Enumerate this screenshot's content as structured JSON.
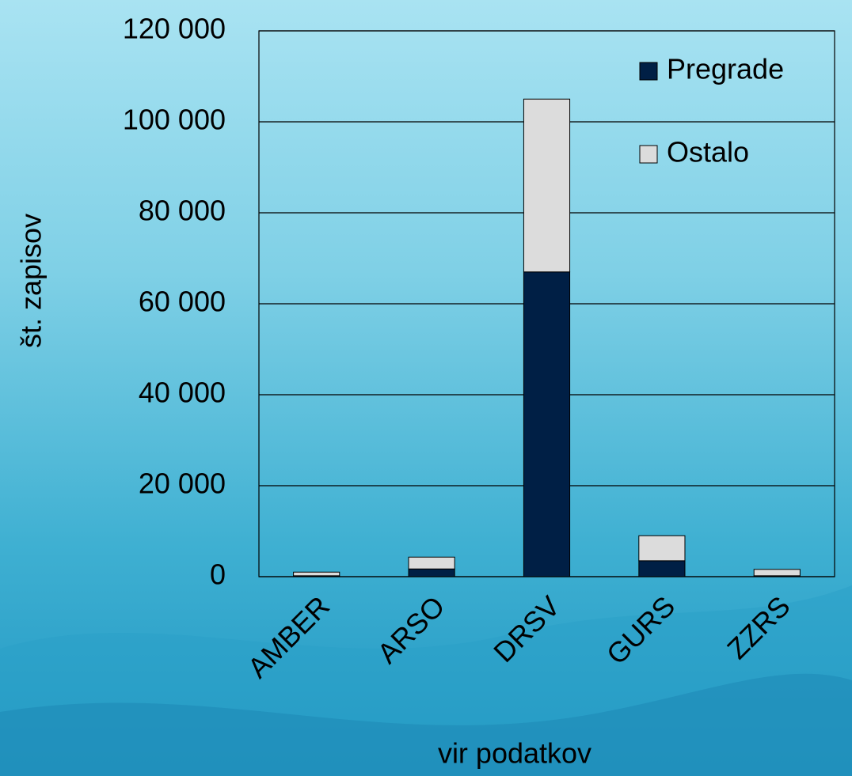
{
  "chart_data": {
    "type": "stacked-bar",
    "x_label": "vir podatkov",
    "y_label": "št. zapisov",
    "categories": [
      "AMBER",
      "ARSO",
      "DRSV",
      "GURS",
      "ZZRS"
    ],
    "series": [
      {
        "name": "Pregrade",
        "color": "#001f45",
        "values": [
          200,
          1700,
          67000,
          3500,
          200
        ]
      },
      {
        "name": "Ostalo",
        "color": "#dcdcdc",
        "values": [
          800,
          2600,
          38000,
          5500,
          1400
        ]
      }
    ],
    "ylim": [
      0,
      120000
    ],
    "yticks": [
      0,
      {
        "value": 20000,
        "label": "20 000"
      },
      {
        "value": 40000,
        "label": "40 000"
      },
      {
        "value": 60000,
        "label": "60 000"
      },
      {
        "value": 80000,
        "label": "80 000"
      },
      {
        "value": 100000,
        "label": "100 000"
      },
      {
        "value": 120000,
        "label": "120 000"
      }
    ],
    "grid": true,
    "legend": "top-right"
  }
}
